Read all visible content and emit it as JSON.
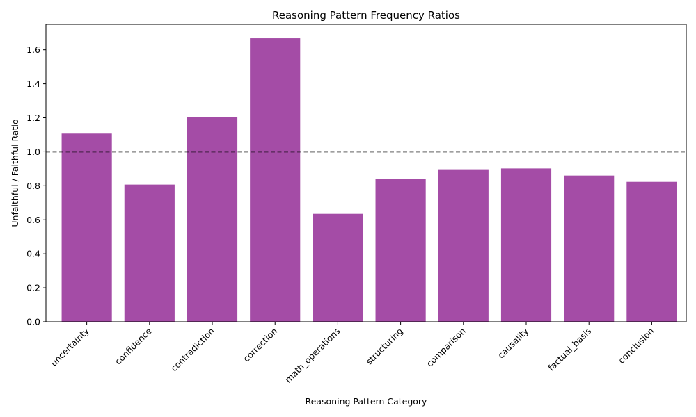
{
  "chart_data": {
    "type": "bar",
    "title": "Reasoning Pattern Frequency Ratios",
    "xlabel": "Reasoning Pattern Category",
    "ylabel": "Unfaithful / Faithful Ratio",
    "categories": [
      "uncertainty",
      "confidence",
      "contradiction",
      "correction",
      "math_operations",
      "structuring",
      "comparison",
      "causality",
      "factual_basis",
      "conclusion"
    ],
    "values": [
      1.107,
      0.807,
      1.205,
      1.668,
      0.635,
      0.84,
      0.897,
      0.902,
      0.86,
      0.823
    ],
    "ylim": [
      0,
      1.75
    ],
    "yticks": [
      "0.0",
      "0.2",
      "0.4",
      "0.6",
      "0.8",
      "1.0",
      "1.2",
      "1.4",
      "1.6"
    ],
    "reference_line": 1.0,
    "bar_color": "#a44ca6",
    "grid": false
  }
}
